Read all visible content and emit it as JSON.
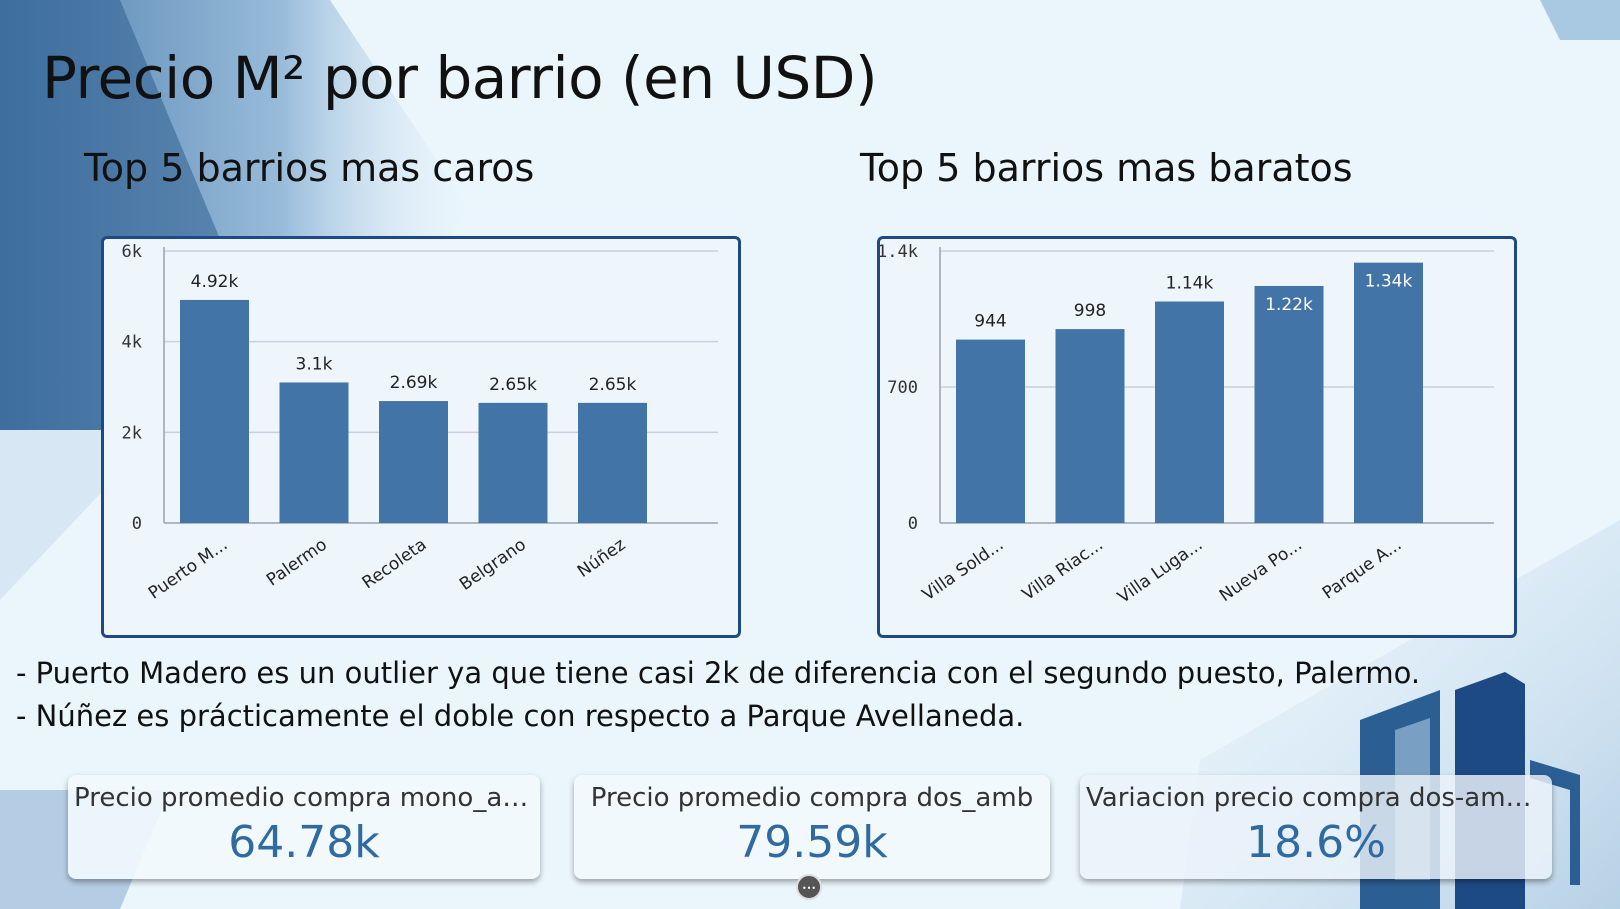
{
  "slide": {
    "title": "Precio M² por barrio (en USD)",
    "notes": [
      "- Puerto Madero es un outlier ya que tiene casi 2k de diferencia con el segundo puesto, Palermo.",
      "- Núñez es prácticamente el doble con respecto a Parque Avellaneda."
    ]
  },
  "colors": {
    "bar": "#4374a8",
    "frame": "#1d4a84",
    "kpi_value": "#2f6aa0"
  },
  "chart_data": [
    {
      "type": "bar",
      "title": "Top 5 barrios mas caros",
      "categories": [
        "Puerto M...",
        "Palermo",
        "Recoleta",
        "Belgrano",
        "Núñez"
      ],
      "values": [
        4920,
        3100,
        2690,
        2650,
        2650
      ],
      "data_labels": [
        "4.92k",
        "3.1k",
        "2.69k",
        "2.65k",
        "2.65k"
      ],
      "data_labels_inside": [
        false,
        false,
        false,
        false,
        false
      ],
      "yticks": [
        0,
        2000,
        4000,
        6000
      ],
      "ytick_labels": [
        "0",
        "2k",
        "4k",
        "6k"
      ],
      "ylim": [
        0,
        6000
      ],
      "grid": true,
      "legend": "none"
    },
    {
      "type": "bar",
      "title": "Top 5 barrios mas baratos",
      "categories": [
        "Villa Sold...",
        "Villa Riac...",
        "Villa Luga...",
        "Nueva Po...",
        "Parque A..."
      ],
      "values": [
        944,
        998,
        1140,
        1220,
        1340
      ],
      "data_labels": [
        "944",
        "998",
        "1.14k",
        "1.22k",
        "1.34k"
      ],
      "data_labels_inside": [
        false,
        false,
        false,
        true,
        true
      ],
      "yticks": [
        0,
        700,
        1400
      ],
      "ytick_labels": [
        "0",
        "700",
        "1.4k"
      ],
      "ylim": [
        0,
        1400
      ],
      "grid": true,
      "legend": "none"
    }
  ],
  "kpis": [
    {
      "label": "Precio promedio compra mono_amb",
      "value": "64.78k"
    },
    {
      "label": "Precio promedio compra dos_amb",
      "value": "79.59k"
    },
    {
      "label": "Variacion precio compra dos-amb ...",
      "value": "18.6%"
    }
  ]
}
